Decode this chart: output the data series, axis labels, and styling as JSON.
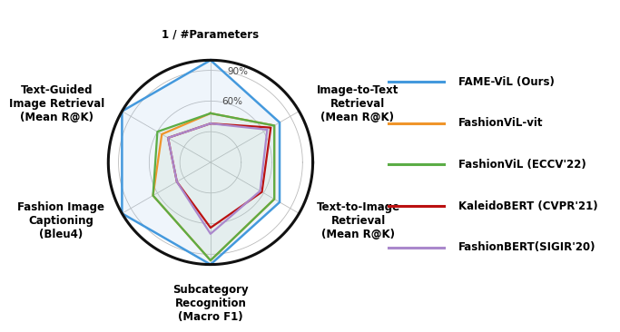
{
  "categories": [
    "1 / #Parameters",
    "Image-to-Text\nRetrieval\n(Mean R@K)",
    "Text-to-Image\nRetrieval\n(Mean R@K)",
    "Subcategory\nRecognition\n(Macro F1)",
    "Fashion Image\nCaptioning\n(Bleu4)",
    "Text-Guided\nImage Retrieval\n(Mean R@K)"
  ],
  "models": [
    {
      "label": "FAME-ViL (Ours)",
      "color": "#4499DD",
      "linewidth": 1.8,
      "values": [
        100,
        78,
        78,
        100,
        100,
        100
      ],
      "fill": true,
      "fill_alpha": 0.18,
      "fill_color": "#aaccee"
    },
    {
      "label": "FashionViL-vit",
      "color": "#F0952A",
      "linewidth": 1.6,
      "values": [
        48,
        72,
        72,
        96,
        65,
        55
      ],
      "fill": false,
      "fill_alpha": 0.0,
      "fill_color": null
    },
    {
      "label": "FashionViL (ECCV'22)",
      "color": "#5BAD46",
      "linewidth": 1.6,
      "values": [
        48,
        72,
        72,
        96,
        65,
        60
      ],
      "fill": true,
      "fill_alpha": 0.15,
      "fill_color": "#aaccaa"
    },
    {
      "label": "KaleidoBERT (CVPR'21)",
      "color": "#BB1111",
      "linewidth": 1.6,
      "values": [
        38,
        68,
        58,
        64,
        38,
        48
      ],
      "fill": false,
      "fill_alpha": 0.0,
      "fill_color": null
    },
    {
      "label": "FashionBERT(SIGIR'20)",
      "color": "#AA88CC",
      "linewidth": 1.6,
      "values": [
        38,
        64,
        56,
        70,
        38,
        48
      ],
      "fill": false,
      "fill_alpha": 0.0,
      "fill_color": null
    }
  ],
  "grid_pcts": [
    30,
    60,
    90
  ],
  "grid_label_pcts": [
    60,
    90
  ],
  "grid_labels": [
    "60%",
    "90%"
  ],
  "max_val": 100,
  "background_color": "#ffffff",
  "grid_color": "#bbbbbb",
  "spoke_color": "#bbbbbb",
  "outer_circle_color": "#111111",
  "outer_circle_lw": 2.2,
  "label_fontsize": 8.5,
  "legend_fontsize": 8.5
}
